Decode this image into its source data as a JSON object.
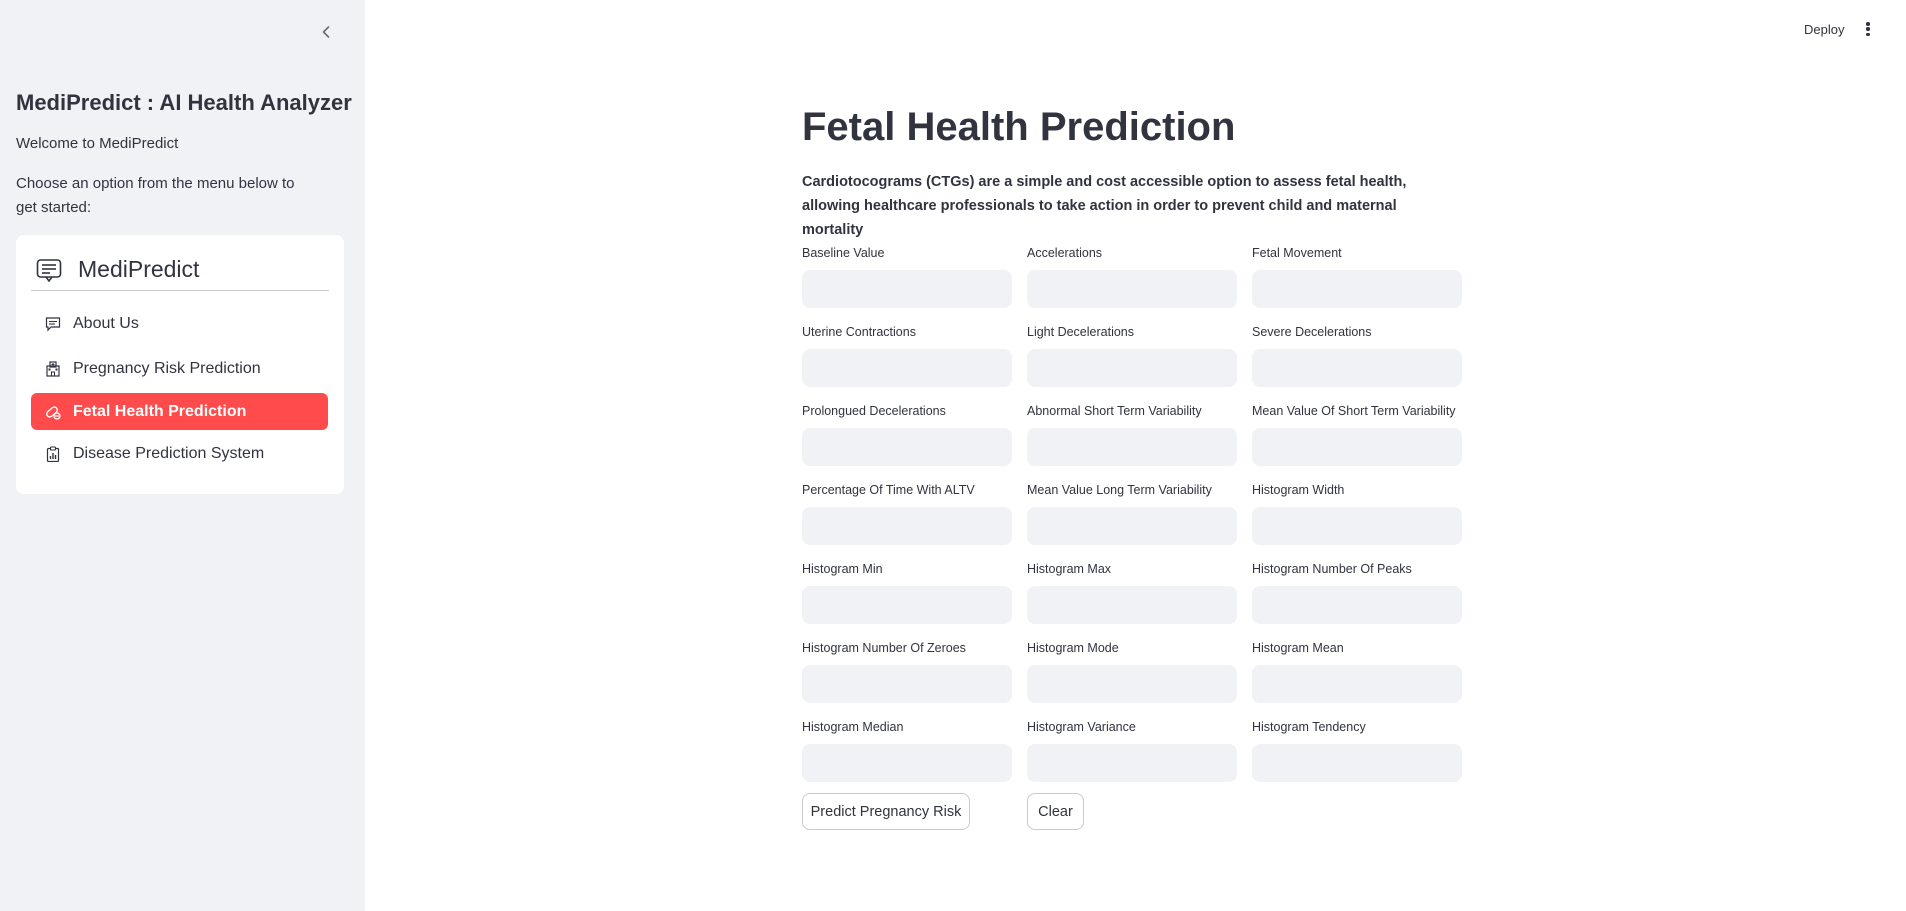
{
  "header": {
    "deploy_label": "Deploy",
    "menu_icon": "kebab-menu-icon"
  },
  "sidebar": {
    "collapse_icon": "chevron-left-icon",
    "app_title": "MediPredict : AI Health Analyzer",
    "welcome_text": "Welcome to MediPredict",
    "instruction_text": "Choose an option from the menu below to get started:",
    "menu": {
      "title": "MediPredict",
      "title_icon": "list-document-icon",
      "items": [
        {
          "label": "About Us",
          "icon": "chat-icon",
          "active": false
        },
        {
          "label": "Pregnancy Risk Prediction",
          "icon": "hospital-icon",
          "active": false
        },
        {
          "label": "Fetal Health Prediction",
          "icon": "capsule-icon",
          "active": true
        },
        {
          "label": "Disease Prediction System",
          "icon": "clipboard-chart-icon",
          "active": false
        }
      ],
      "active_color": "#ff4b4b"
    }
  },
  "main": {
    "title": "Fetal Health Prediction",
    "description": "Cardiotocograms (CTGs) are a simple and cost accessible option to assess fetal health, allowing healthcare professionals to take action in order to prevent child and maternal mortality",
    "fields": [
      {
        "label": "Baseline Value",
        "value": ""
      },
      {
        "label": "Accelerations",
        "value": ""
      },
      {
        "label": "Fetal Movement",
        "value": ""
      },
      {
        "label": "Uterine Contractions",
        "value": ""
      },
      {
        "label": "Light Decelerations",
        "value": ""
      },
      {
        "label": "Severe Decelerations",
        "value": ""
      },
      {
        "label": "Prolongued Decelerations",
        "value": ""
      },
      {
        "label": "Abnormal Short Term Variability",
        "value": ""
      },
      {
        "label": "Mean Value Of Short Term Variability",
        "value": ""
      },
      {
        "label": "Percentage Of Time With ALTV",
        "value": ""
      },
      {
        "label": "Mean Value Long Term Variability",
        "value": ""
      },
      {
        "label": "Histogram Width",
        "value": ""
      },
      {
        "label": "Histogram Min",
        "value": ""
      },
      {
        "label": "Histogram Max",
        "value": ""
      },
      {
        "label": "Histogram Number Of Peaks",
        "value": ""
      },
      {
        "label": "Histogram Number Of Zeroes",
        "value": ""
      },
      {
        "label": "Histogram Mode",
        "value": ""
      },
      {
        "label": "Histogram Mean",
        "value": ""
      },
      {
        "label": "Histogram Median",
        "value": ""
      },
      {
        "label": "Histogram Variance",
        "value": ""
      },
      {
        "label": "Histogram Tendency",
        "value": ""
      }
    ],
    "predict_button": "Predict Pregnancy Risk",
    "clear_button": "Clear"
  }
}
